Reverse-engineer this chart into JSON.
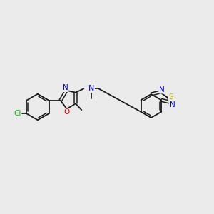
{
  "background_color": "#ebebeb",
  "bond_color": "#1a1a1a",
  "atom_colors": {
    "Cl": "#00bb00",
    "N": "#0000ee",
    "O": "#ee0000",
    "S": "#bbbb00",
    "C": "#1a1a1a"
  },
  "figsize": [
    3.0,
    3.0
  ],
  "dpi": 100,
  "xlim": [
    0,
    10
  ],
  "ylim": [
    0,
    10
  ]
}
